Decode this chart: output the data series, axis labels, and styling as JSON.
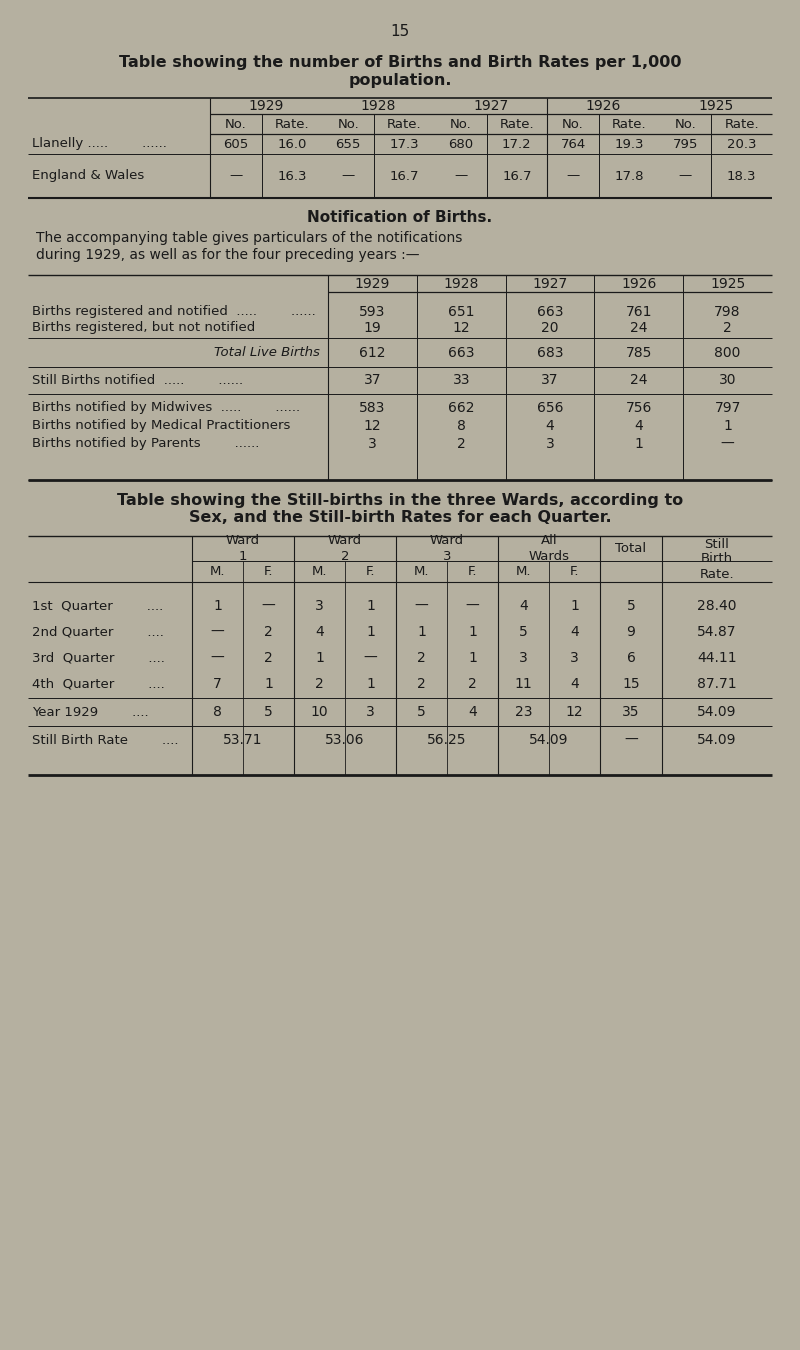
{
  "bg_color": "#b5b0a0",
  "text_color": "#1a1a1a",
  "page_number": "15",
  "title1_line1": "Table showing the number of Births and Birth Rates per 1,000",
  "title1_line2": "population.",
  "table1_years": [
    "1929",
    "1928",
    "1927",
    "1926",
    "1925"
  ],
  "table1_rows": [
    {
      "label": "Llanelly .....        ......",
      "values": [
        "605",
        "16.0",
        "655",
        "17.3",
        "680",
        "17.2",
        "764",
        "19.3",
        "795",
        "20.3"
      ]
    },
    {
      "label": "England & Wales",
      "values": [
        "—",
        "16.3",
        "—",
        "16.7",
        "—",
        "16.7",
        "—",
        "17.8",
        "—",
        "18.3"
      ]
    }
  ],
  "section2_title": "Notification of Births.",
  "section2_text_line1": "The accompanying table gives particulars of the notifications",
  "section2_text_line2": "during 1929, as well as for the four preceding years :—",
  "table2_years": [
    "1929",
    "1928",
    "1927",
    "1926",
    "1925"
  ],
  "table2_vals": [
    [
      "593",
      "651",
      "663",
      "761",
      "798"
    ],
    [
      "19",
      "12",
      "20",
      "24",
      "2"
    ],
    [
      "612",
      "663",
      "683",
      "785",
      "800"
    ],
    [
      "37",
      "33",
      "37",
      "24",
      "30"
    ],
    [
      "583",
      "662",
      "656",
      "756",
      "797"
    ],
    [
      "12",
      "8",
      "4",
      "4",
      "1"
    ],
    [
      "3",
      "2",
      "3",
      "1",
      "—"
    ]
  ],
  "title3_line1": "Table showing the Still-births in the three Wards, according to",
  "title3_line2": "Sex, and the Still-birth Rates for each Quarter.",
  "table3_rows": [
    {
      "label": "1st  Quarter",
      "w1m": "1",
      "w1f": "—",
      "w2m": "3",
      "w2f": "1",
      "w3m": "—",
      "w3f": "—",
      "allm": "4",
      "allf": "1",
      "total": "5",
      "rate": "28.40"
    },
    {
      "label": "2nd Quarter",
      "w1m": "—",
      "w1f": "2",
      "w2m": "4",
      "w2f": "1",
      "w3m": "1",
      "w3f": "1",
      "allm": "5",
      "allf": "4",
      "total": "9",
      "rate": "54.87"
    },
    {
      "label": "3rd  Quarter",
      "w1m": "—",
      "w1f": "2",
      "w2m": "1",
      "w2f": "—",
      "w3m": "2",
      "w3f": "1",
      "allm": "3",
      "allf": "3",
      "total": "6",
      "rate": "44.11"
    },
    {
      "label": "4th  Quarter",
      "w1m": "7",
      "w1f": "1",
      "w2m": "2",
      "w2f": "1",
      "w3m": "2",
      "w3f": "2",
      "allm": "11",
      "allf": "4",
      "total": "15",
      "rate": "87.71"
    },
    {
      "label": "Year 1929",
      "w1m": "8",
      "w1f": "5",
      "w2m": "10",
      "w2f": "3",
      "w3m": "5",
      "w3f": "4",
      "allm": "23",
      "allf": "12",
      "total": "35",
      "rate": "54.09"
    },
    {
      "label": "Still Birth Rate",
      "w1m": "53.71",
      "w1f": "",
      "w2m": "53.06",
      "w2f": "",
      "w3m": "56.25",
      "w3f": "",
      "allm": "54.09",
      "allf": "",
      "total": "—",
      "rate": "54.09"
    }
  ]
}
